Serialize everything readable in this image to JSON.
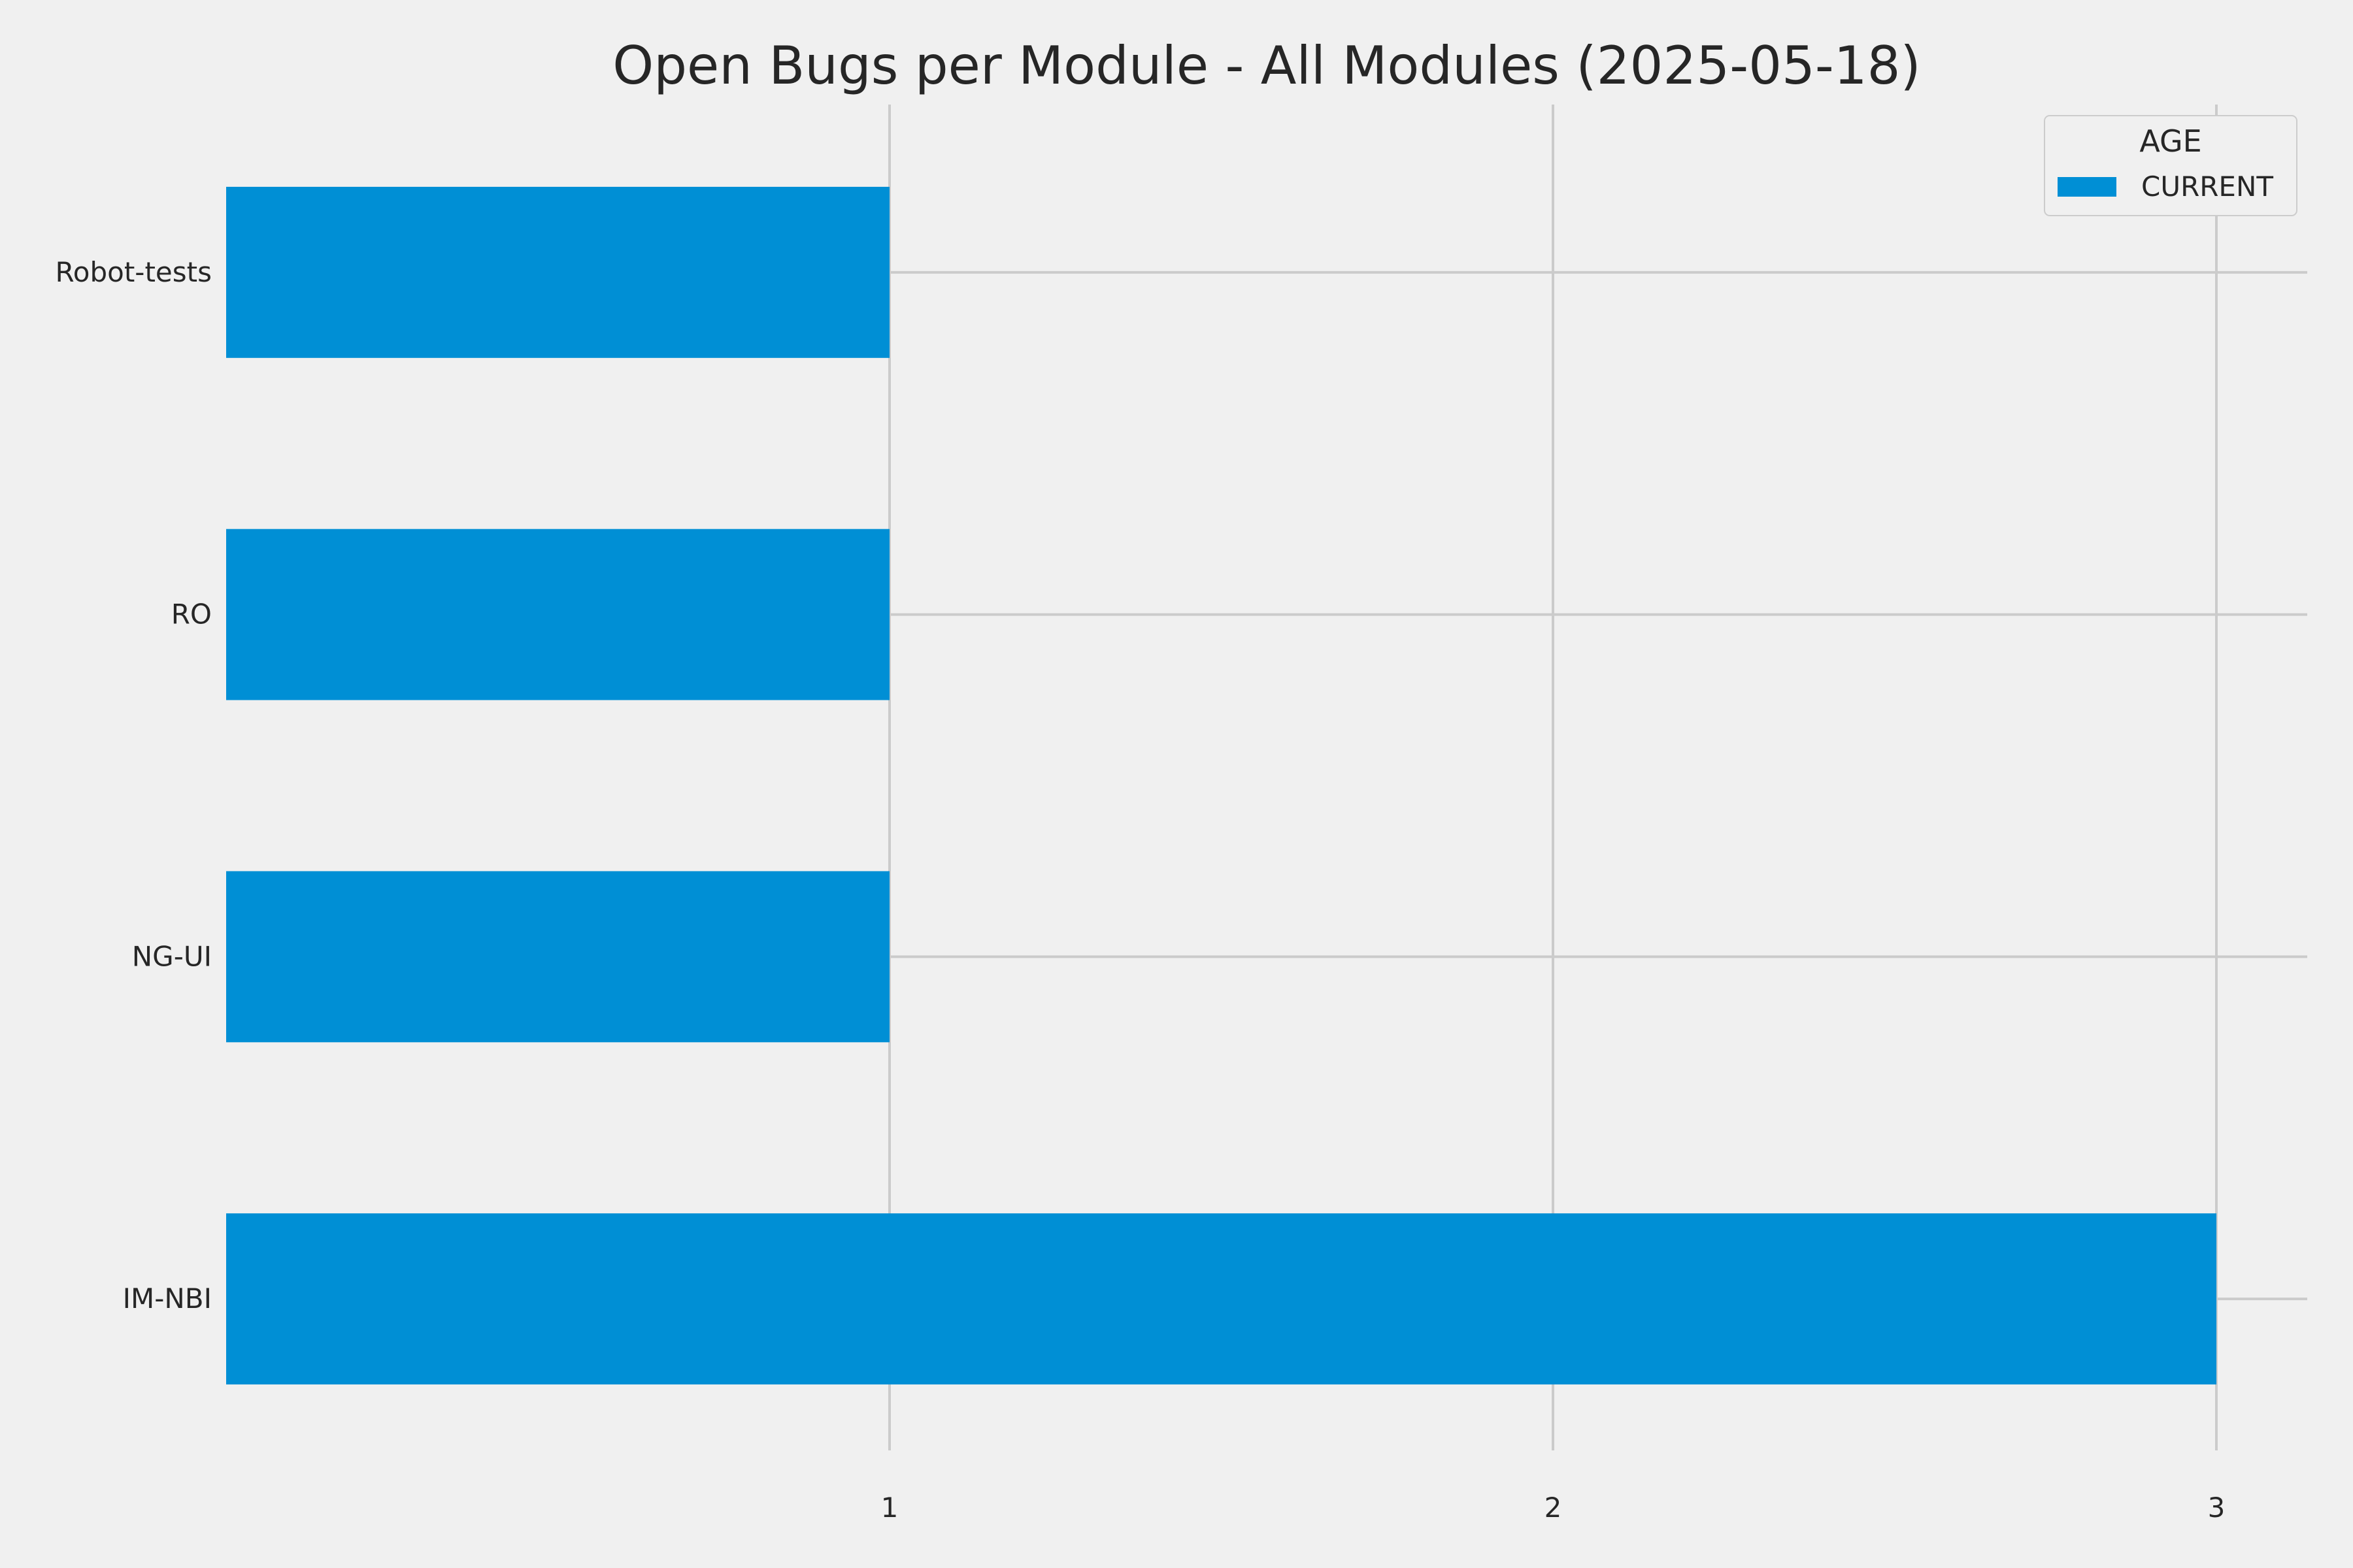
{
  "chart_data": {
    "type": "bar",
    "orientation": "horizontal",
    "title": "Open Bugs per Module - All Modules (2025-05-18)",
    "xlabel": "",
    "ylabel": "",
    "categories": [
      "Robot-tests",
      "RO",
      "NG-UI",
      "IM-NBI"
    ],
    "series": [
      {
        "name": "CURRENT",
        "values": [
          1,
          1,
          1,
          3
        ],
        "color": "#008fd5"
      }
    ],
    "xlim": [
      0,
      3.15
    ],
    "xticks": [
      1,
      2,
      3
    ],
    "xtick_labels": [
      "1",
      "2",
      "3"
    ],
    "grid": true,
    "legend": {
      "title": "AGE",
      "placement": "top-right"
    },
    "colors": {
      "background": "#f0f0f0",
      "grid": "#cbcbcb",
      "text": "#262626",
      "bar": "#008fd5"
    }
  }
}
